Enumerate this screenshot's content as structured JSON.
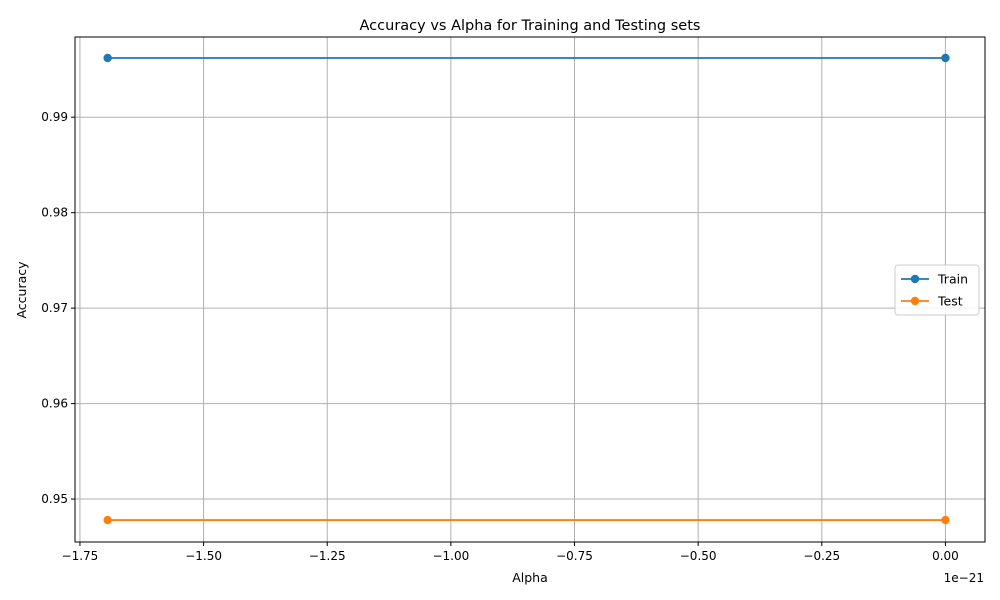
{
  "chart_data": {
    "type": "line",
    "title": "Accuracy vs Alpha for Training and Testing sets",
    "xlabel": "Alpha",
    "ylabel": "Accuracy",
    "x_offset_text": "1e−21",
    "x_scale": 1e-21,
    "xlim": [
      -1.76,
      0.08
    ],
    "ylim": [
      0.9455,
      0.9984
    ],
    "x_ticks": [
      -1.75,
      -1.5,
      -1.25,
      -1.0,
      -0.75,
      -0.5,
      -0.25,
      0.0
    ],
    "x_tick_labels": [
      "−1.75",
      "−1.50",
      "−1.25",
      "−1.00",
      "−0.75",
      "−0.50",
      "−0.25",
      "0.00"
    ],
    "y_ticks": [
      0.95,
      0.96,
      0.97,
      0.98,
      0.99
    ],
    "y_tick_labels": [
      "0.95",
      "0.96",
      "0.97",
      "0.98",
      "0.99"
    ],
    "grid": true,
    "legend_position": "center-right",
    "x": [
      -1.694,
      0.0
    ],
    "series": [
      {
        "name": "Train",
        "values": [
          0.9962,
          0.9962
        ],
        "color": "#1f77b4"
      },
      {
        "name": "Test",
        "values": [
          0.9478,
          0.9478
        ],
        "color": "#ff7f0e"
      }
    ]
  }
}
